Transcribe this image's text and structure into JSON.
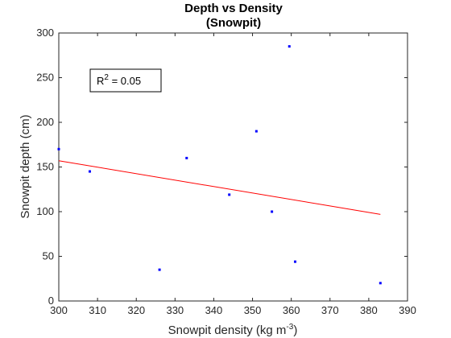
{
  "chart_data": {
    "type": "scatter",
    "title": "Depth vs Density",
    "subtitle": "(Snowpit)",
    "xlabel_main": "Snowpit density (kg m",
    "xlabel_sup": "-3",
    "xlabel_end": ")",
    "ylabel": "Snowpit depth (cm)",
    "xlim": [
      300,
      390
    ],
    "ylim": [
      0,
      300
    ],
    "xticks": [
      300,
      310,
      320,
      330,
      340,
      350,
      360,
      370,
      380,
      390
    ],
    "yticks": [
      0,
      50,
      100,
      150,
      200,
      250,
      300
    ],
    "points": [
      {
        "x": 300,
        "y": 170
      },
      {
        "x": 308,
        "y": 145
      },
      {
        "x": 326,
        "y": 35
      },
      {
        "x": 333,
        "y": 160
      },
      {
        "x": 344,
        "y": 119
      },
      {
        "x": 351,
        "y": 190
      },
      {
        "x": 355,
        "y": 100
      },
      {
        "x": 359.5,
        "y": 285
      },
      {
        "x": 361,
        "y": 44
      },
      {
        "x": 383,
        "y": 20
      }
    ],
    "fit_line": {
      "x": [
        300,
        383
      ],
      "y": [
        157,
        97
      ]
    },
    "annotation": {
      "prefix": "R",
      "sup": "2",
      "suffix": " = 0.05"
    },
    "grid": false,
    "colors": {
      "points": "#0000ff",
      "fit_line": "#ff0000",
      "axes": "#262626"
    }
  }
}
